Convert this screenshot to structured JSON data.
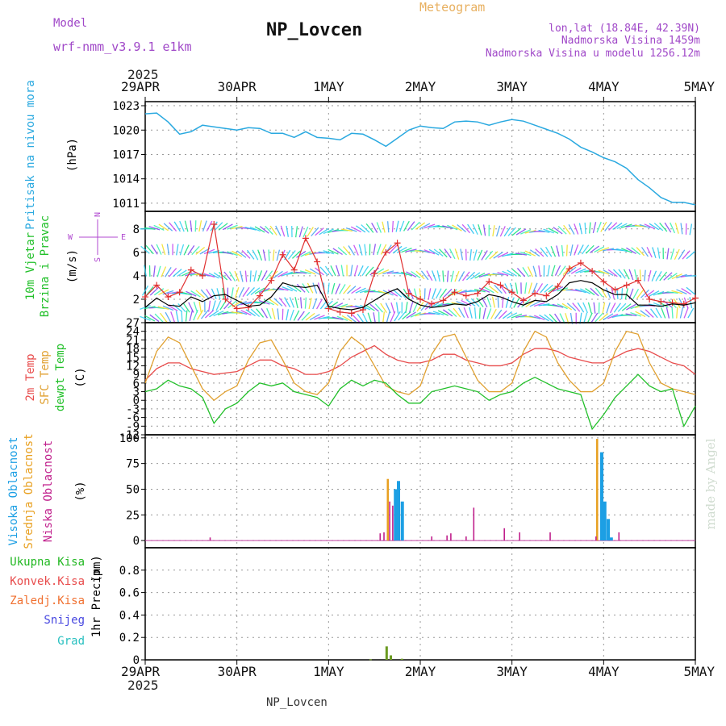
{
  "header": {
    "model_label": "Model",
    "model_name": "wrf-nmm_v3.9.1  e1km",
    "station_title": "NP_Lovcen",
    "product": "Meteogram",
    "lonlat": "lon,lat (18.84E, 42.39N)",
    "elevation": "Nadmorska Visina 1459m",
    "model_elevation": "Nadmorska Visina u modelu 1256.12m",
    "footer_station": "NP_Lovcen",
    "credit": "made by Angel",
    "year": "2025"
  },
  "colors": {
    "pressure": "#2aa9e0",
    "t2m": "#e84b4b",
    "sfc": "#e0a030",
    "dewpt": "#22c02a",
    "cloud_high": "#1c9fe4",
    "cloud_mid": "#e8a020",
    "cloud_low": "#c0208c",
    "precip_total": "#22b822",
    "precip_conv": "#e84b4b",
    "precip_frozen": "#f07030",
    "snow": "#4848e0",
    "hail": "#28c0c0",
    "wind_speed": "#000000",
    "wind_gust": "#e03030",
    "wind_label": "#b048d0",
    "model_text": "#a048c8",
    "product_text": "#e8b060"
  },
  "time_axis": {
    "labels": [
      "29APR",
      "30APR",
      "1MAY",
      "2MAY",
      "3MAY",
      "4MAY",
      "5MAY"
    ],
    "hours": [
      0,
      24,
      48,
      72,
      96,
      120,
      144
    ]
  },
  "chart_data": [
    {
      "type": "line",
      "id": "pressure",
      "ylabel": "Pritisak na nivou mora",
      "unit": "(hPa)",
      "ylim": [
        1010,
        1023.5
      ],
      "yticks": [
        1011,
        1014,
        1017,
        1020,
        1023
      ],
      "grid": true,
      "series": [
        {
          "x": [
            0,
            3,
            6,
            9,
            12,
            15,
            18,
            21,
            24,
            27,
            30,
            33,
            36,
            39,
            42,
            45,
            48,
            51,
            54,
            57,
            60,
            63,
            66,
            69,
            72,
            75,
            78,
            81,
            84,
            87,
            90,
            93,
            96,
            99,
            102,
            105,
            108,
            111,
            114,
            117,
            120,
            123,
            126,
            129,
            132,
            135,
            138,
            141,
            144
          ],
          "values": [
            1022.0,
            1022.1,
            1021.0,
            1019.5,
            1019.8,
            1020.6,
            1020.4,
            1020.2,
            1020.0,
            1020.3,
            1020.2,
            1019.6,
            1019.6,
            1019.1,
            1019.8,
            1019.1,
            1019.0,
            1018.8,
            1019.6,
            1019.5,
            1018.8,
            1018.0,
            1019.0,
            1020.0,
            1020.5,
            1020.3,
            1020.2,
            1021.0,
            1021.1,
            1021.0,
            1020.6,
            1021.0,
            1021.3,
            1021.1,
            1020.6,
            1020.1,
            1019.6,
            1018.9,
            1017.9,
            1017.3,
            1016.6,
            1016.1,
            1015.3,
            1013.9,
            1012.9,
            1011.7,
            1011.1,
            1011.1,
            1010.8
          ]
        }
      ]
    },
    {
      "type": "line",
      "id": "wind",
      "ylabel": "10m Vjetar",
      "ylabel2": "Brzina i Pravac",
      "unit": "(m/s)",
      "ylim": [
        0,
        9.5
      ],
      "yticks": [
        2,
        4,
        6,
        8
      ],
      "grid": true,
      "direction_legend": {
        "n": "N",
        "s": "S",
        "e": "E",
        "w": "W"
      },
      "series": [
        {
          "name": "",
          "x": [
            0,
            3,
            6,
            9,
            12,
            15,
            18,
            21,
            24,
            27,
            30,
            33,
            36,
            39,
            42,
            45,
            48,
            51,
            54,
            57,
            60,
            63,
            66,
            69,
            72,
            75,
            78,
            81,
            84,
            87,
            90,
            93,
            96,
            99,
            102,
            105,
            108,
            111,
            114,
            117,
            120,
            123,
            126,
            129,
            132,
            135,
            138,
            141,
            144
          ],
          "values": [
            1.3,
            2.1,
            1.5,
            1.4,
            2.2,
            1.8,
            2.3,
            2.4,
            1.9,
            1.4,
            1.5,
            2.2,
            3.4,
            3.1,
            3.0,
            3.2,
            1.4,
            1.2,
            1.1,
            1.3,
            1.9,
            2.5,
            2.9,
            2.0,
            1.5,
            1.3,
            1.4,
            1.6,
            1.5,
            1.8,
            2.4,
            2.2,
            1.8,
            1.5,
            1.9,
            1.8,
            2.4,
            3.4,
            3.6,
            3.4,
            2.8,
            2.4,
            2.4,
            1.5,
            1.5,
            1.4,
            1.6,
            1.5,
            1.7
          ]
        },
        {
          "name": "",
          "x": [
            0,
            3,
            6,
            9,
            12,
            15,
            18,
            21,
            24,
            27,
            30,
            33,
            36,
            39,
            42,
            45,
            48,
            51,
            54,
            57,
            60,
            63,
            66,
            69,
            72,
            75,
            78,
            81,
            84,
            87,
            90,
            93,
            96,
            99,
            102,
            105,
            108,
            111,
            114,
            117,
            120,
            123,
            126,
            129,
            132,
            135,
            138,
            141,
            144
          ],
          "values": [
            2.2,
            3.2,
            2.2,
            2.6,
            4.5,
            4.0,
            8.4,
            2.0,
            1.2,
            1.3,
            2.3,
            3.6,
            5.8,
            4.5,
            7.2,
            5.2,
            1.2,
            0.9,
            0.8,
            1.1,
            4.2,
            6.0,
            6.8,
            2.5,
            2.0,
            1.6,
            1.9,
            2.6,
            2.3,
            2.5,
            3.5,
            3.2,
            2.6,
            1.9,
            2.5,
            2.3,
            3.1,
            4.6,
            5.1,
            4.4,
            3.5,
            2.8,
            3.2,
            3.6,
            2.0,
            1.8,
            1.7,
            1.6,
            2.1
          ]
        }
      ]
    },
    {
      "type": "line",
      "id": "temperature",
      "ylabel": "2m Temp",
      "ylabel2": "SFC Temp",
      "ylabel3": "dewpt Temp",
      "unit": "(C)",
      "ylim": [
        -12,
        27
      ],
      "yticks": [
        -12,
        -9,
        -6,
        -3,
        0,
        3,
        6,
        9,
        12,
        15,
        18,
        21,
        24,
        27
      ],
      "grid": true,
      "series": [
        {
          "name": "2m Temp",
          "x": [
            0,
            3,
            6,
            9,
            12,
            15,
            18,
            21,
            24,
            27,
            30,
            33,
            36,
            39,
            42,
            45,
            48,
            51,
            54,
            57,
            60,
            63,
            66,
            69,
            72,
            75,
            78,
            81,
            84,
            87,
            90,
            93,
            96,
            99,
            102,
            105,
            108,
            111,
            114,
            117,
            120,
            123,
            126,
            129,
            132,
            135,
            138,
            141,
            144
          ],
          "values": [
            7,
            11,
            13,
            13,
            11,
            10,
            9,
            9.5,
            10,
            12,
            14,
            14,
            12,
            11,
            9,
            9,
            10,
            12,
            15,
            17,
            19,
            16,
            14,
            13,
            13,
            14,
            16,
            16,
            14,
            13,
            12,
            12,
            13,
            16,
            18,
            18,
            17,
            15,
            14,
            13,
            13,
            15,
            17,
            18,
            17,
            15,
            13,
            12,
            9
          ]
        },
        {
          "name": "SFC Temp",
          "x": [
            0,
            3,
            6,
            9,
            12,
            15,
            18,
            21,
            24,
            27,
            30,
            33,
            36,
            39,
            42,
            45,
            48,
            51,
            54,
            57,
            60,
            63,
            66,
            69,
            72,
            75,
            78,
            81,
            84,
            87,
            90,
            93,
            96,
            99,
            102,
            105,
            108,
            111,
            114,
            117,
            120,
            123,
            126,
            129,
            132,
            135,
            138,
            141,
            144
          ],
          "values": [
            6,
            17,
            22,
            20,
            12,
            4,
            0,
            3,
            5,
            14,
            20,
            21,
            14,
            6,
            3,
            2,
            6,
            17,
            22,
            19,
            12,
            5,
            3,
            2,
            5,
            16,
            22,
            23,
            15,
            7,
            3,
            3,
            6,
            17,
            24,
            22,
            13,
            7,
            3,
            3,
            6,
            17,
            24,
            23,
            13,
            6,
            4,
            3,
            2
          ]
        },
        {
          "name": "dewpt Temp",
          "x": [
            0,
            3,
            6,
            9,
            12,
            15,
            18,
            21,
            24,
            27,
            30,
            33,
            36,
            39,
            42,
            45,
            48,
            51,
            54,
            57,
            60,
            63,
            66,
            69,
            72,
            75,
            78,
            81,
            84,
            87,
            90,
            93,
            96,
            99,
            102,
            105,
            108,
            111,
            114,
            117,
            120,
            123,
            126,
            129,
            132,
            135,
            138,
            141,
            144
          ],
          "values": [
            3,
            4,
            7,
            5,
            4,
            1,
            -8,
            -3,
            -1,
            3,
            6,
            5,
            6,
            3,
            2,
            1,
            -2,
            4,
            7,
            5,
            7,
            6,
            2,
            -1,
            -1,
            3,
            4,
            5,
            4,
            3,
            0,
            2,
            3,
            6,
            8,
            6,
            4,
            3,
            2,
            -10,
            -5,
            1,
            5,
            9,
            5,
            3,
            4,
            -9,
            -2
          ]
        }
      ]
    },
    {
      "type": "bar",
      "id": "clouds",
      "ylabel": "Visoka Oblacnost",
      "ylabel2": "Srednja Oblacnost",
      "ylabel3": "Niska Oblacnost",
      "unit": "(%)",
      "ylim": [
        -7,
        103
      ],
      "yticks": [
        0,
        25,
        50,
        75,
        100
      ],
      "grid": true,
      "series": [
        {
          "name": "Visoka Oblacnost",
          "x": [
            65.5,
            66.3,
            67.3,
            119.5,
            120.3,
            121.2,
            122.0
          ],
          "values": [
            50,
            58,
            38,
            86,
            38,
            21,
            3
          ]
        },
        {
          "name": "Srednja Oblacnost",
          "x": [
            63.5,
            118.3
          ],
          "values": [
            60,
            99
          ]
        },
        {
          "name": "Niska Oblacnost",
          "x": [
            17.0,
            61.5,
            62.5,
            64.0,
            64.8,
            75.0,
            79.0,
            80.0,
            84.0,
            86.0,
            94.0,
            98.0,
            106.0,
            118.0,
            124.0
          ],
          "values": [
            3,
            7,
            8,
            38,
            34,
            4,
            5,
            7,
            4,
            32,
            12,
            8,
            8,
            4,
            8
          ]
        }
      ]
    },
    {
      "type": "bar",
      "id": "precip",
      "ylabel": "1hr Precip",
      "unit": "(mm)",
      "ylim": [
        0,
        1.0
      ],
      "yticks": [
        0,
        0.2,
        0.4,
        0.6,
        0.8
      ],
      "grid": true,
      "legend": [
        "Ukupna Kisa",
        "Konvek.Kisa",
        "Zaledj.Kisa",
        "Snijeg",
        "Grad"
      ],
      "series": [
        {
          "name": "Ukupna Kisa",
          "x": [
            59.0,
            63.2,
            64.3,
            67.2
          ],
          "values": [
            0.005,
            0.12,
            0.04,
            0.01
          ]
        }
      ]
    }
  ]
}
